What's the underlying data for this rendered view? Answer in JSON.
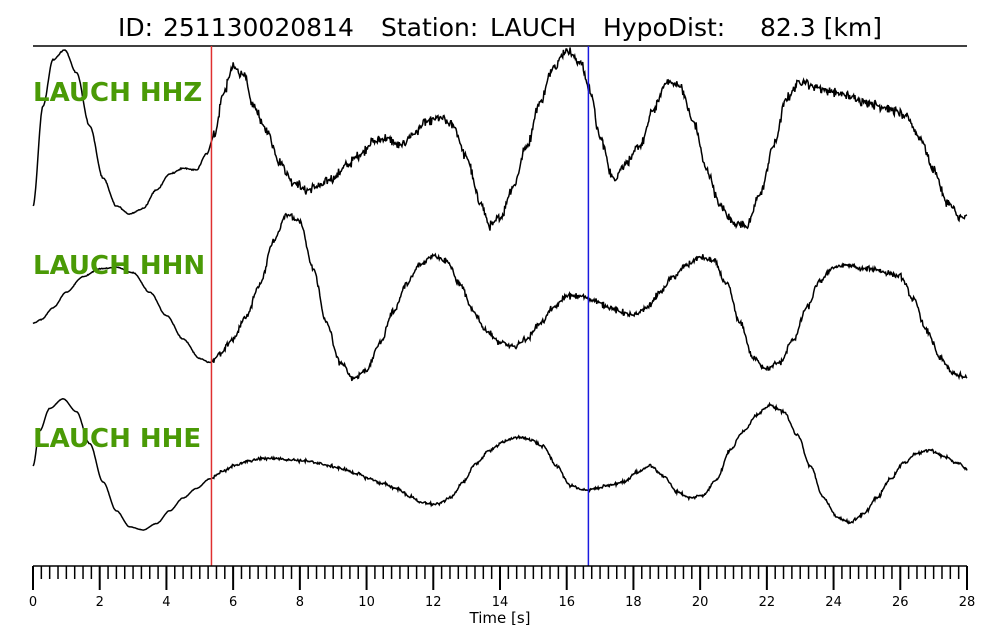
{
  "title": {
    "id_label": "ID:",
    "id_value": "251130020814",
    "station_label": "Station:",
    "station_value": "LAUCH",
    "hypodist_label": "HypoDist:",
    "hypodist_value": "82.3 [km]"
  },
  "colors": {
    "trace": "#000000",
    "label": "#4a9a06",
    "p_pick": "#e03030",
    "s_pick": "#1a1adf"
  },
  "chart_data": {
    "type": "line",
    "xlabel": "Time [s]",
    "xlim": [
      0,
      28
    ],
    "x_ticks": [
      0,
      2,
      4,
      6,
      8,
      10,
      12,
      14,
      16,
      18,
      20,
      22,
      24,
      26,
      28
    ],
    "minor_tick_step": 0.25,
    "grid": false,
    "picks": [
      {
        "name": "P",
        "time": 5.35,
        "color": "#e03030"
      },
      {
        "name": "S",
        "time": 16.65,
        "color": "#1a1adf"
      }
    ],
    "series": [
      {
        "name": "LAUCH HHZ",
        "x": [
          0,
          0.3,
          0.6,
          0.95,
          1.3,
          1.7,
          2.1,
          2.5,
          2.9,
          3.3,
          3.7,
          4.1,
          4.5,
          4.9,
          5.2,
          5.45,
          5.7,
          6.0,
          6.3,
          6.6,
          7.0,
          7.4,
          7.8,
          8.2,
          8.6,
          9.0,
          9.4,
          9.8,
          10.2,
          10.6,
          11.0,
          11.4,
          11.8,
          12.2,
          12.6,
          13.0,
          13.4,
          13.7,
          14.0,
          14.4,
          14.8,
          15.2,
          15.6,
          16.0,
          16.4,
          16.7,
          17.0,
          17.4,
          17.8,
          18.2,
          18.6,
          19.0,
          19.4,
          19.8,
          20.2,
          20.6,
          21.0,
          21.4,
          21.8,
          22.2,
          22.6,
          23.0,
          23.4,
          23.8,
          24.2,
          24.6,
          25.0,
          25.4,
          25.8,
          26.2,
          26.6,
          27.0,
          27.4,
          27.8,
          28.0
        ],
        "y": [
          -0.95,
          0.3,
          0.88,
          1.0,
          0.72,
          0.05,
          -0.6,
          -0.95,
          -1.05,
          -0.98,
          -0.75,
          -0.55,
          -0.48,
          -0.5,
          -0.3,
          -0.05,
          0.45,
          0.78,
          0.7,
          0.3,
          0.0,
          -0.4,
          -0.65,
          -0.75,
          -0.7,
          -0.6,
          -0.45,
          -0.3,
          -0.15,
          -0.1,
          -0.2,
          -0.05,
          0.1,
          0.15,
          0.05,
          -0.35,
          -0.9,
          -1.2,
          -1.1,
          -0.7,
          -0.2,
          0.35,
          0.8,
          1.0,
          0.85,
          0.5,
          -0.1,
          -0.6,
          -0.4,
          -0.2,
          0.25,
          0.6,
          0.55,
          0.1,
          -0.5,
          -0.95,
          -1.15,
          -1.2,
          -0.8,
          -0.2,
          0.4,
          0.62,
          0.55,
          0.5,
          0.45,
          0.4,
          0.35,
          0.3,
          0.25,
          0.15,
          -0.1,
          -0.5,
          -0.9,
          -1.1,
          -1.1
        ],
        "noise_after": 5.4,
        "noise_amp": 0.07
      },
      {
        "name": "LAUCH HHN",
        "x": [
          0,
          0.25,
          0.6,
          1.0,
          1.5,
          2.0,
          2.5,
          3.0,
          3.5,
          4.0,
          4.5,
          5.0,
          5.3,
          5.6,
          6.0,
          6.4,
          6.8,
          7.2,
          7.6,
          8.0,
          8.4,
          8.8,
          9.2,
          9.6,
          10.0,
          10.4,
          10.8,
          11.2,
          11.6,
          12.0,
          12.4,
          12.8,
          13.2,
          13.6,
          14.0,
          14.4,
          14.8,
          15.2,
          15.6,
          16.0,
          16.4,
          16.8,
          17.2,
          17.6,
          18.0,
          18.4,
          18.8,
          19.2,
          19.6,
          20.0,
          20.4,
          20.8,
          21.2,
          21.6,
          22.0,
          22.4,
          22.8,
          23.2,
          23.6,
          24.0,
          24.4,
          24.8,
          25.2,
          25.6,
          26.0,
          26.4,
          26.8,
          27.2,
          27.6,
          28.0
        ],
        "y": [
          -0.3,
          -0.25,
          -0.1,
          0.1,
          0.3,
          0.4,
          0.42,
          0.35,
          0.1,
          -0.2,
          -0.5,
          -0.75,
          -0.8,
          -0.7,
          -0.5,
          -0.2,
          0.2,
          0.75,
          1.1,
          1.0,
          0.4,
          -0.3,
          -0.8,
          -1.0,
          -0.9,
          -0.55,
          -0.15,
          0.2,
          0.45,
          0.58,
          0.5,
          0.2,
          -0.15,
          -0.4,
          -0.55,
          -0.6,
          -0.5,
          -0.3,
          -0.1,
          0.05,
          0.05,
          0.0,
          -0.08,
          -0.15,
          -0.2,
          -0.1,
          0.1,
          0.3,
          0.45,
          0.55,
          0.5,
          0.2,
          -0.3,
          -0.75,
          -0.88,
          -0.8,
          -0.5,
          -0.1,
          0.25,
          0.42,
          0.45,
          0.4,
          0.4,
          0.35,
          0.3,
          0.0,
          -0.4,
          -0.75,
          -0.95,
          -1.0
        ],
        "noise_after": 5.4,
        "noise_amp": 0.045
      },
      {
        "name": "LAUCH HHE",
        "x": [
          0,
          0.2,
          0.5,
          0.9,
          1.3,
          1.7,
          2.1,
          2.5,
          2.9,
          3.3,
          3.7,
          4.1,
          4.5,
          4.9,
          5.3,
          5.7,
          6.1,
          6.5,
          6.9,
          7.3,
          7.7,
          8.1,
          8.5,
          8.9,
          9.3,
          9.7,
          10.1,
          10.5,
          10.9,
          11.3,
          11.7,
          12.1,
          12.5,
          12.9,
          13.3,
          13.7,
          14.1,
          14.5,
          14.9,
          15.3,
          15.7,
          16.1,
          16.5,
          16.9,
          17.3,
          17.7,
          18.1,
          18.5,
          18.9,
          19.3,
          19.7,
          20.1,
          20.5,
          20.9,
          21.3,
          21.7,
          22.1,
          22.5,
          22.9,
          23.3,
          23.7,
          24.1,
          24.5,
          24.9,
          25.3,
          25.7,
          26.1,
          26.5,
          26.9,
          27.3,
          27.7,
          28.0
        ],
        "y": [
          0.0,
          0.55,
          0.9,
          1.05,
          0.85,
          0.35,
          -0.25,
          -0.7,
          -0.95,
          -1.0,
          -0.9,
          -0.7,
          -0.5,
          -0.35,
          -0.2,
          -0.08,
          0.02,
          0.08,
          0.12,
          0.12,
          0.1,
          0.08,
          0.05,
          0.0,
          -0.05,
          -0.12,
          -0.2,
          -0.28,
          -0.35,
          -0.48,
          -0.58,
          -0.6,
          -0.5,
          -0.25,
          0.05,
          0.25,
          0.38,
          0.45,
          0.42,
          0.3,
          0.0,
          -0.3,
          -0.38,
          -0.35,
          -0.3,
          -0.25,
          -0.1,
          0.0,
          -0.15,
          -0.4,
          -0.5,
          -0.45,
          -0.2,
          0.25,
          0.55,
          0.8,
          0.95,
          0.85,
          0.5,
          0.0,
          -0.5,
          -0.8,
          -0.88,
          -0.75,
          -0.5,
          -0.2,
          0.05,
          0.2,
          0.25,
          0.15,
          0.05,
          -0.05
        ],
        "noise_after": 5.4,
        "noise_amp": 0.03
      }
    ]
  }
}
